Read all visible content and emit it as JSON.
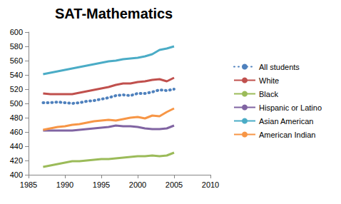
{
  "chart_data": {
    "type": "line",
    "title": "SAT-Mathematics",
    "x": [
      1987,
      1988,
      1989,
      1990,
      1991,
      1992,
      1993,
      1994,
      1995,
      1996,
      1997,
      1998,
      1999,
      2000,
      2001,
      2002,
      2003,
      2004,
      2005
    ],
    "series": [
      {
        "name": "All students",
        "color": "#4f81bd",
        "line_style": "dotted",
        "values": [
          501,
          501,
          502,
          501,
          500,
          501,
          503,
          504,
          506,
          508,
          511,
          512,
          511,
          514,
          514,
          516,
          519,
          518,
          520
        ]
      },
      {
        "name": "White",
        "color": "#c0504d",
        "line_style": "solid",
        "values": [
          514,
          513,
          513,
          513,
          513,
          515,
          517,
          519,
          521,
          523,
          526,
          528,
          528,
          530,
          531,
          533,
          534,
          531,
          536
        ]
      },
      {
        "name": "Black",
        "color": "#9bbb59",
        "line_style": "solid",
        "values": [
          411,
          413,
          415,
          417,
          419,
          419,
          420,
          421,
          422,
          422,
          423,
          424,
          425,
          426,
          426,
          427,
          426,
          427,
          431
        ]
      },
      {
        "name": "Hispanic or Latino",
        "color": "#8064a2",
        "line_style": "solid",
        "values": [
          462,
          462,
          462,
          462,
          462,
          463,
          464,
          465,
          466,
          467,
          469,
          468,
          468,
          467,
          465,
          464,
          464,
          465,
          469
        ]
      },
      {
        "name": "Asian American",
        "color": "#4bacc6",
        "line_style": "solid",
        "values": [
          541,
          543,
          545,
          547,
          549,
          551,
          553,
          555,
          557,
          559,
          560,
          562,
          563,
          564,
          566,
          569,
          575,
          577,
          580
        ]
      },
      {
        "name": "American Indian",
        "color": "#f79646",
        "line_style": "solid",
        "values": [
          463,
          465,
          467,
          468,
          470,
          471,
          473,
          475,
          476,
          477,
          476,
          478,
          480,
          481,
          479,
          483,
          482,
          488,
          493
        ]
      }
    ],
    "xlim": [
      1985,
      2010
    ],
    "xticks": [
      1985,
      1990,
      1995,
      2000,
      2005,
      2010
    ],
    "ylim": [
      400,
      600
    ],
    "yticks": [
      400,
      420,
      440,
      460,
      480,
      500,
      520,
      540,
      560,
      580,
      600
    ],
    "grid": false,
    "legend": "right",
    "marker": "none"
  }
}
